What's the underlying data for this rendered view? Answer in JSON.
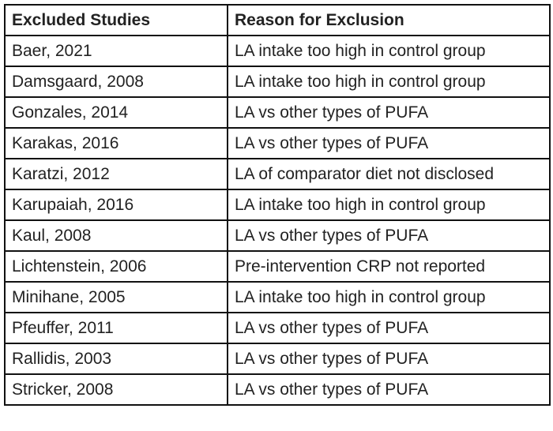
{
  "table": {
    "header": [
      "Excluded Studies",
      "Reason for Exclusion"
    ],
    "rows": [
      [
        "Baer, 2021",
        "LA intake too high in control group"
      ],
      [
        "Damsgaard, 2008",
        "LA intake too high in control group"
      ],
      [
        "Gonzales, 2014",
        "LA vs other types of PUFA"
      ],
      [
        "Karakas, 2016",
        "LA vs other types of PUFA"
      ],
      [
        "Karatzi, 2012",
        "LA of comparator diet not disclosed"
      ],
      [
        "Karupaiah, 2016",
        "LA intake too high in control group"
      ],
      [
        "Kaul, 2008",
        "LA vs other types of PUFA"
      ],
      [
        "Lichtenstein, 2006",
        "Pre-intervention CRP not reported"
      ],
      [
        "Minihane, 2005",
        "LA intake too high in control group"
      ],
      [
        "Pfeuffer, 2011",
        "LA vs other types of PUFA"
      ],
      [
        "Rallidis, 2003",
        "LA vs other types of PUFA"
      ],
      [
        "Stricker, 2008",
        "LA vs other types of PUFA"
      ]
    ]
  }
}
